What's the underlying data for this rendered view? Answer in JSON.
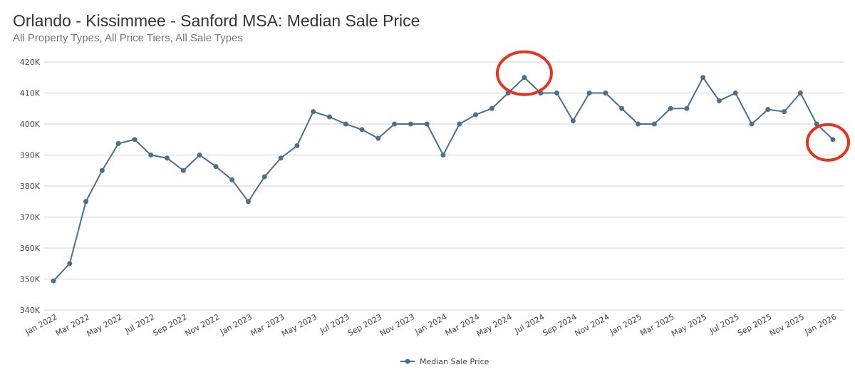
{
  "chart_data": {
    "type": "line",
    "title": "Orlando - Kissimmee - Sanford MSA: Median Sale Price",
    "subtitle": "All Property Types, All Price Tiers, All Sale Types",
    "xlabel": "",
    "ylabel": "",
    "ylim": [
      340000,
      420000
    ],
    "yticks": [
      340000,
      350000,
      360000,
      370000,
      380000,
      390000,
      400000,
      410000,
      420000
    ],
    "ytick_labels": [
      "340K",
      "350K",
      "360K",
      "370K",
      "380K",
      "390K",
      "400K",
      "410K",
      "420K"
    ],
    "x": [
      "Jan 2022",
      "Feb 2022",
      "Mar 2022",
      "Apr 2022",
      "May 2022",
      "Jun 2022",
      "Jul 2022",
      "Aug 2022",
      "Sep 2022",
      "Oct 2022",
      "Nov 2022",
      "Dec 2022",
      "Jan 2023",
      "Feb 2023",
      "Mar 2023",
      "Apr 2023",
      "May 2023",
      "Jun 2023",
      "Jul 2023",
      "Aug 2023",
      "Sep 2023",
      "Oct 2023",
      "Nov 2023",
      "Dec 2023",
      "Jan 2024",
      "Feb 2024",
      "Mar 2024",
      "Apr 2024",
      "May 2024",
      "Jun 2024",
      "Jul 2024",
      "Aug 2024",
      "Sep 2024",
      "Oct 2024",
      "Nov 2024",
      "Dec 2024",
      "Jan 2025",
      "Feb 2025",
      "Mar 2025",
      "Apr 2025",
      "May 2025",
      "Jun 2025",
      "Jul 2025",
      "Aug 2025",
      "Sep 2025",
      "Oct 2025",
      "Nov 2025",
      "Dec 2025",
      "Jan 2026"
    ],
    "xtick_labels": [
      "Jan 2022",
      "Mar 2022",
      "May 2022",
      "Jul 2022",
      "Sep 2022",
      "Nov 2022",
      "Jan 2023",
      "Mar 2023",
      "May 2023",
      "Jul 2023",
      "Sep 2023",
      "Nov 2023",
      "Jan 2024",
      "Mar 2024",
      "May 2024",
      "Jul 2024",
      "Sep 2024",
      "Nov 2024",
      "Jan 2025",
      "Mar 2025",
      "May 2025",
      "Jul 2025",
      "Sep 2025",
      "Nov 2025",
      "Jan 2026"
    ],
    "series": [
      {
        "name": "Median Sale Price",
        "color": "#4a6f8f",
        "values": [
          349400,
          355000,
          375000,
          385000,
          393700,
          395000,
          390000,
          389000,
          385000,
          390000,
          386300,
          382000,
          375000,
          383000,
          389000,
          393000,
          404000,
          402300,
          400000,
          398200,
          395400,
          400000,
          400000,
          400000,
          390000,
          400000,
          403000,
          405000,
          410000,
          415000,
          410000,
          410000,
          401000,
          410000,
          410000,
          405000,
          400000,
          400000,
          405000,
          405000,
          415000,
          407500,
          410000,
          400000,
          404700,
          404000,
          410000,
          400000,
          395000
        ]
      }
    ],
    "grid": true,
    "legend": "bottom-center",
    "annotations": [
      {
        "type": "circle",
        "target": "Jun 2024",
        "color": "#e8321e"
      },
      {
        "type": "circle",
        "target": "Jan 2026",
        "color": "#e8321e"
      }
    ]
  }
}
